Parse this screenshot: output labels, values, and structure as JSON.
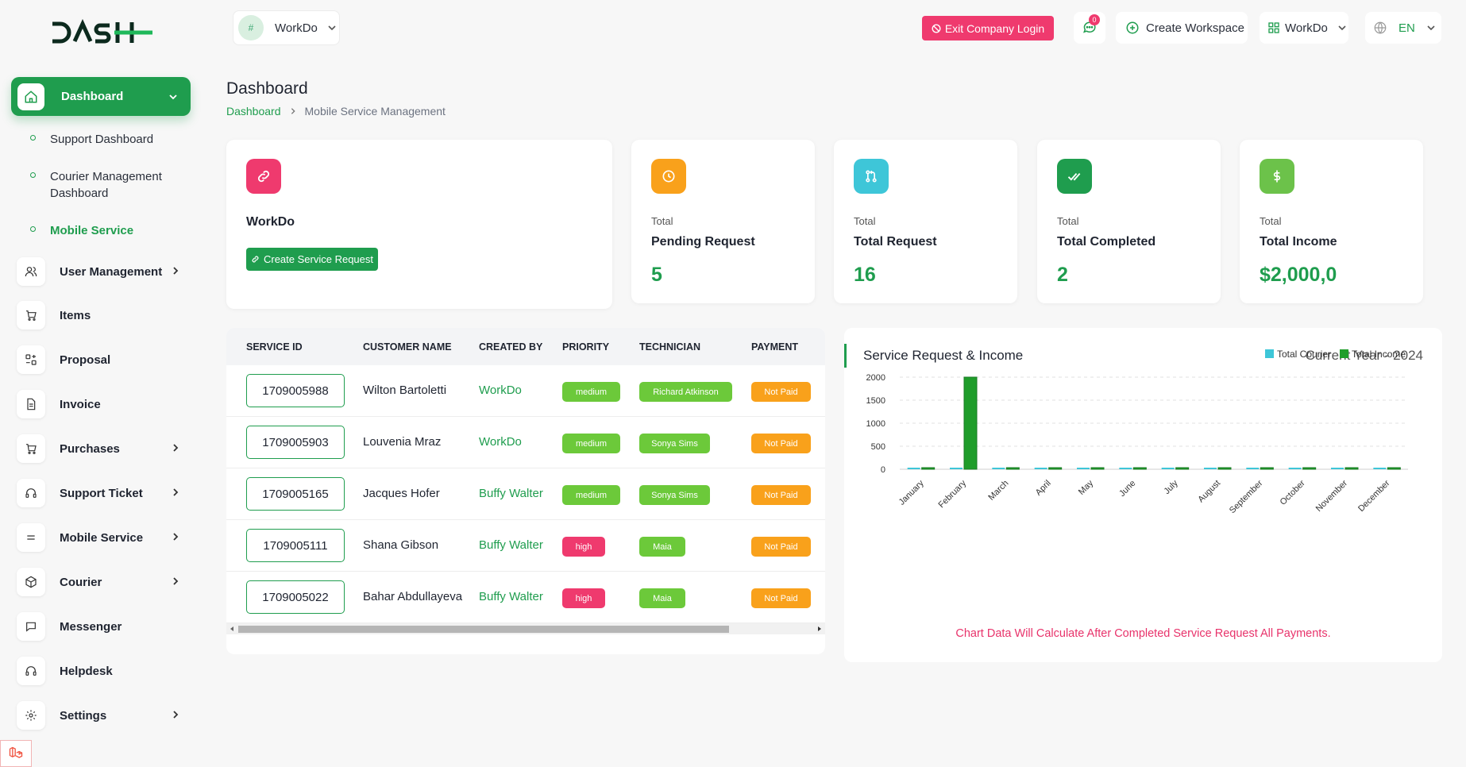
{
  "brand": {
    "logo_text": "DASH"
  },
  "sidebar": {
    "active": {
      "label": "Dashboard"
    },
    "subitems": [
      {
        "label": "Support Dashboard"
      },
      {
        "label": "Courier Management Dashboard"
      },
      {
        "label": "Mobile Service"
      }
    ],
    "items": [
      {
        "label": "User Management",
        "icon": "users-icon"
      },
      {
        "label": "Items",
        "icon": "cart-icon"
      },
      {
        "label": "Proposal",
        "icon": "proposal-icon"
      },
      {
        "label": "Invoice",
        "icon": "invoice-icon"
      },
      {
        "label": "Purchases",
        "icon": "cart-icon"
      },
      {
        "label": "Support Ticket",
        "icon": "headset-icon"
      },
      {
        "label": "Mobile Service",
        "icon": "menu-icon"
      },
      {
        "label": "Courier",
        "icon": "box-icon"
      },
      {
        "label": "Messenger",
        "icon": "chat-icon"
      },
      {
        "label": "Helpdesk",
        "icon": "headset-icon"
      },
      {
        "label": "Settings",
        "icon": "gear-icon"
      }
    ]
  },
  "topbar": {
    "workspace_img_alt": "#",
    "workspace_name": "WorkDo",
    "exit_label": "Exit Company Login",
    "message_count": "0",
    "create_workspace_label": "Create Workspace",
    "workspace2_name": "WorkDo",
    "language": "EN"
  },
  "page": {
    "title": "Dashboard",
    "breadcrumb": [
      "Dashboard",
      "Mobile Service Management"
    ]
  },
  "workspace_card": {
    "name": "WorkDo",
    "button": "Create Service Request"
  },
  "stats": [
    {
      "small": "Total",
      "label": "Pending Request",
      "value": "5",
      "color": "#f9a11b"
    },
    {
      "small": "Total",
      "label": "Total Request",
      "value": "16",
      "color": "#3ec6d8"
    },
    {
      "small": "Total",
      "label": "Total Completed",
      "value": "2",
      "color": "#1f9d4e"
    },
    {
      "small": "Total",
      "label": "Total Income",
      "value": "$2,000,0",
      "color": "#6cc24a"
    }
  ],
  "table": {
    "headers": [
      "SERVICE ID",
      "CUSTOMER NAME",
      "CREATED BY",
      "PRIORITY",
      "TECHNICIAN",
      "PAYMENT"
    ],
    "rows": [
      {
        "id": "1709005988",
        "customer": "Wilton Bartoletti",
        "created_by": "WorkDo",
        "priority": "medium",
        "technician": "Richard Atkinson",
        "payment": "Not Paid"
      },
      {
        "id": "1709005903",
        "customer": "Louvenia Mraz",
        "created_by": "WorkDo",
        "priority": "medium",
        "technician": "Sonya Sims",
        "payment": "Not Paid"
      },
      {
        "id": "1709005165",
        "customer": "Jacques Hofer",
        "created_by": "Buffy Walter",
        "priority": "medium",
        "technician": "Sonya Sims",
        "payment": "Not Paid"
      },
      {
        "id": "1709005111",
        "customer": "Shana Gibson",
        "created_by": "Buffy Walter",
        "priority": "high",
        "technician": "Maia",
        "payment": "Not Paid"
      },
      {
        "id": "1709005022",
        "customer": "Bahar Abdullayeva",
        "created_by": "Buffy Walter",
        "priority": "high",
        "technician": "Maia",
        "payment": "Not Paid"
      }
    ]
  },
  "chart_card": {
    "title": "Service Request & Income",
    "year": "Current Year - 2024",
    "note": "Chart Data Will Calculate After Completed Service Request All Payments."
  },
  "chart_data": {
    "type": "bar",
    "categories": [
      "January",
      "February",
      "March",
      "April",
      "May",
      "June",
      "July",
      "August",
      "September",
      "October",
      "November",
      "December"
    ],
    "series": [
      {
        "name": "Total Courier",
        "color": "#3ec6d8",
        "values": [
          0,
          0,
          0,
          0,
          0,
          0,
          0,
          0,
          0,
          0,
          0,
          0
        ]
      },
      {
        "name": "Total Income",
        "color": "#1f9d2a",
        "values": [
          0,
          2000,
          0,
          0,
          0,
          0,
          0,
          0,
          0,
          0,
          0,
          0
        ]
      }
    ],
    "yticks": [
      "0",
      "500",
      "1000",
      "1500",
      "2000"
    ],
    "ylim": [
      0,
      2000
    ],
    "legend": "top-right",
    "grid": true
  }
}
